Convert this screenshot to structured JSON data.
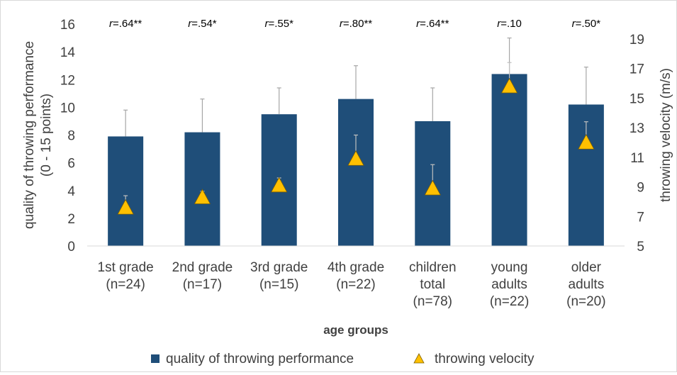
{
  "chart_data": {
    "type": "bar",
    "xlabel": "age groups",
    "ylabel": "quality of throwing performance (0 - 15 points)",
    "ylabel_lines": [
      "quality of throwing performance",
      "(0 - 15 points)"
    ],
    "y2label": "throwing velocity (m/s)",
    "ylim": [
      0,
      16
    ],
    "yticks": [
      0,
      2,
      4,
      6,
      8,
      10,
      12,
      14,
      16
    ],
    "y2lim": [
      5,
      20
    ],
    "y2ticks": [
      5,
      7,
      9,
      11,
      13,
      15,
      17,
      19
    ],
    "categories": [
      [
        "1st grade",
        "(n=24)"
      ],
      [
        "2nd grade",
        "(n=17)"
      ],
      [
        "3rd grade",
        "(n=15)"
      ],
      [
        "4th grade",
        "(n=22)"
      ],
      [
        "children",
        "total",
        "(n=78)"
      ],
      [
        "young",
        "adults",
        "(n=22)"
      ],
      [
        "older",
        "adults",
        "(n=20)"
      ]
    ],
    "correlations": [
      {
        "r": "r",
        "value": "=.64**"
      },
      {
        "r": "r",
        "value": "=.54*"
      },
      {
        "r": "r",
        "value": "=.55*"
      },
      {
        "r": "r",
        "value": "=.80**"
      },
      {
        "r": "r",
        "value": "=.64**"
      },
      {
        "r": "r",
        "value": "=.10"
      },
      {
        "r": "r",
        "value": "=.50*"
      }
    ],
    "series": [
      {
        "name": "quality of throwing performance",
        "axis": "left",
        "kind": "bar",
        "color": "#1f4e79",
        "values": [
          7.9,
          8.2,
          9.5,
          10.6,
          9.0,
          12.4,
          10.2
        ],
        "error": [
          1.9,
          2.4,
          1.9,
          2.4,
          2.4,
          2.6,
          2.7
        ]
      },
      {
        "name": "throwing velocity",
        "axis": "right",
        "kind": "marker",
        "color": "#ffc000",
        "values": [
          7.6,
          8.3,
          9.1,
          10.9,
          8.9,
          15.8,
          12.0
        ],
        "error": [
          0.8,
          0.4,
          0.5,
          1.6,
          1.6,
          1.6,
          1.4
        ]
      }
    ],
    "legend": {
      "placement": "bottom"
    },
    "grid": false
  }
}
